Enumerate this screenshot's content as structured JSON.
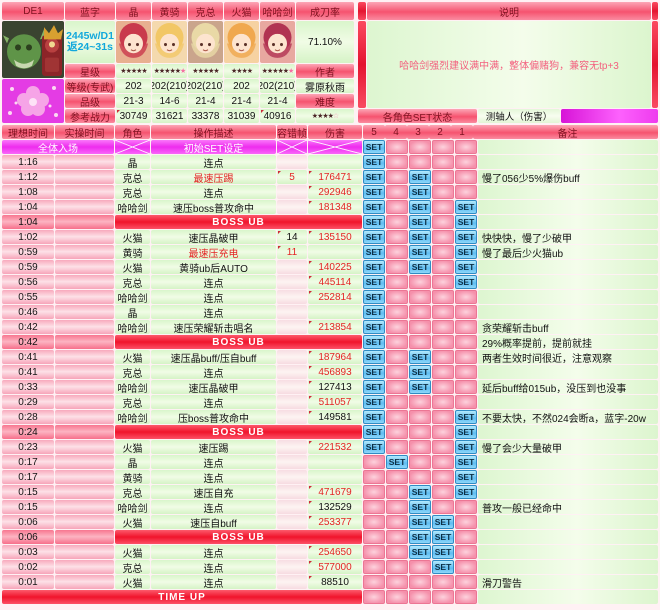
{
  "top": {
    "boss_tag": "DE1",
    "blue_tag": "蓝字",
    "boss_info_line1": "2445w/D1",
    "boss_info_line2": "返24~31s",
    "rate_label": "成刀率",
    "rate_value": "71.10%",
    "desc_label": "说明",
    "description": "哈哈剑强烈建议满中满，整体偏赌狗，兼容无tp+3",
    "row_labels": [
      "星级",
      "等级(专武)",
      "品级",
      "参考战力"
    ],
    "author_label": "作者",
    "author": "雾原秋雨",
    "difficulty_label": "难度",
    "difficulty_stars": "★★★★",
    "difficulty_star_light": "☆",
    "set_status_label": "各角色SET状态",
    "axis_tester_label": "测轴人（伤害）",
    "characters": [
      {
        "name": "晶",
        "stars": "★★★★★",
        "pink_star": "",
        "level": "202",
        "rank": "21-3",
        "power": "30749",
        "hair": "#c93a4c",
        "bg": "#e8b090"
      },
      {
        "name": "黄骑",
        "stars": "★★★★★",
        "pink_star": "★",
        "level": "202(210)",
        "rank": "14-6",
        "power": "31621",
        "hair": "#f2c766",
        "bg": "#f4d9ae"
      },
      {
        "name": "克总",
        "stars": "★★★★★",
        "pink_star": "",
        "level": "202(210)",
        "rank": "21-4",
        "power": "33378",
        "hair": "#e9d9a6",
        "bg": "#caa58c"
      },
      {
        "name": "火猫",
        "stars": "★★★★",
        "pink_star": "",
        "level": "202",
        "rank": "21-4",
        "power": "31039",
        "hair": "#f0a84e",
        "bg": "#f6d2a2"
      },
      {
        "name": "哈哈剑",
        "stars": "★★★★★",
        "pink_star": "★",
        "level": "202(210)",
        "rank": "21-4",
        "power": "40916",
        "hair": "#b13352",
        "bg": "#e8a8a0"
      }
    ]
  },
  "table": {
    "headers": {
      "ideal_time": "理想时间",
      "actual_time": "实操时间",
      "role": "角色",
      "action": "操作描述",
      "tolerance": "容错帧",
      "damage": "伤害",
      "note": "备注"
    },
    "set_columns": [
      "5",
      "4",
      "3",
      "2",
      "1"
    ],
    "boss_row_label": "BOSS UB",
    "timeup_row_label": "TIME UP",
    "rows": [
      {
        "type": "start",
        "time": "全体入场",
        "desc": "初始SET设定",
        "set": [
          5
        ],
        "note": ""
      },
      {
        "type": "entry",
        "time": "1:16",
        "char": "晶",
        "desc": "连点",
        "tol": "",
        "dmg": "",
        "set": [
          5
        ],
        "note": ""
      },
      {
        "type": "entry",
        "time": "1:12",
        "char": "克总",
        "desc": "最速压踢",
        "desc_red": true,
        "tol": "5",
        "tol_red": true,
        "dmg": "176471",
        "dmg_red": true,
        "set": [
          5,
          3
        ],
        "note": "慢了056少5%爆伤buff"
      },
      {
        "type": "entry",
        "time": "1:08",
        "char": "克总",
        "desc": "连点",
        "tol": "",
        "dmg": "292946",
        "dmg_red": true,
        "set": [
          5,
          3
        ],
        "note": ""
      },
      {
        "type": "entry",
        "time": "1:04",
        "char": "哈哈剑",
        "desc": "速压boss普攻命中",
        "tol": "",
        "dmg": "181348",
        "dmg_red": true,
        "set": [
          5,
          3,
          1
        ],
        "note": ""
      },
      {
        "type": "boss",
        "time": "1:04",
        "set": [
          5,
          3,
          1
        ],
        "note": ""
      },
      {
        "type": "entry",
        "time": "1:02",
        "char": "火猫",
        "desc": "速压晶破甲",
        "tol": "14",
        "dmg": "135150",
        "dmg_red": true,
        "set": [
          5,
          3,
          1
        ],
        "note": "快快快，慢了少破甲"
      },
      {
        "type": "entry",
        "time": "0:59",
        "char": "黄骑",
        "desc": "最速压充电",
        "desc_red": true,
        "tol": "11",
        "tol_red": true,
        "dmg": "",
        "set": [
          5,
          3,
          1
        ],
        "note": "慢了最后少火猫ub"
      },
      {
        "type": "entry",
        "time": "0:59",
        "char": "火猫",
        "desc": "黄骑ub后AUTO",
        "tol": "",
        "dmg": "140225",
        "dmg_red": true,
        "set": [
          5,
          3,
          1
        ],
        "note": ""
      },
      {
        "type": "entry",
        "time": "0:56",
        "char": "克总",
        "desc": "连点",
        "tol": "",
        "dmg": "445114",
        "dmg_red": true,
        "set": [
          5,
          1
        ],
        "note": ""
      },
      {
        "type": "entry",
        "time": "0:55",
        "char": "哈哈剑",
        "desc": "连点",
        "tol": "",
        "dmg": "252814",
        "dmg_red": true,
        "set": [
          5
        ],
        "note": ""
      },
      {
        "type": "entry",
        "time": "0:46",
        "char": "晶",
        "desc": "连点",
        "tol": "",
        "dmg": "",
        "set": [
          5
        ],
        "note": ""
      },
      {
        "type": "entry",
        "time": "0:42",
        "char": "哈哈剑",
        "desc": "速压荣耀斩击唱名",
        "tol": "",
        "dmg": "213854",
        "dmg_red": true,
        "set": [
          5
        ],
        "note": "贪荣耀斩击buff"
      },
      {
        "type": "boss",
        "time": "0:42",
        "set": [
          5
        ],
        "note": "29%概率提前，提前就挂"
      },
      {
        "type": "entry",
        "time": "0:41",
        "char": "火猫",
        "desc": "速压晶buff/压自buff",
        "tol": "",
        "dmg": "187964",
        "dmg_red": true,
        "set": [
          5,
          3
        ],
        "note": "两者生效时间很近，注意观察"
      },
      {
        "type": "entry",
        "time": "0:41",
        "char": "克总",
        "desc": "连点",
        "tol": "",
        "dmg": "456893",
        "dmg_red": true,
        "set": [
          5,
          3
        ],
        "note": ""
      },
      {
        "type": "entry",
        "time": "0:33",
        "char": "哈哈剑",
        "desc": "速压晶破甲",
        "tol": "",
        "dmg": "127413",
        "set": [
          5,
          3
        ],
        "note": "延后buff给015ub，没压到也没事"
      },
      {
        "type": "entry",
        "time": "0:29",
        "char": "克总",
        "desc": "连点",
        "tol": "",
        "dmg": "511057",
        "dmg_red": true,
        "set": [
          5
        ],
        "note": ""
      },
      {
        "type": "entry",
        "time": "0:28",
        "char": "哈哈剑",
        "desc": "压boss普攻命中",
        "tol": "",
        "dmg": "149581",
        "set": [
          5,
          1
        ],
        "note": "不要太快，不然024会断a，蓝字-20w"
      },
      {
        "type": "boss",
        "time": "0:24",
        "set": [
          5,
          1
        ],
        "note": ""
      },
      {
        "type": "entry",
        "time": "0:23",
        "char": "火猫",
        "desc": "速压踢",
        "tol": "",
        "dmg": "221532",
        "dmg_red": true,
        "set": [
          5,
          1
        ],
        "note": "慢了会少大量破甲"
      },
      {
        "type": "entry",
        "time": "0:17",
        "char": "晶",
        "desc": "连点",
        "tol": "",
        "dmg": "",
        "set": [
          4,
          1
        ],
        "note": ""
      },
      {
        "type": "entry",
        "time": "0:17",
        "char": "黄骑",
        "desc": "连点",
        "tol": "",
        "dmg": "",
        "set": [
          1
        ],
        "note": ""
      },
      {
        "type": "entry",
        "time": "0:15",
        "char": "克总",
        "desc": "速压自充",
        "tol": "",
        "dmg": "471679",
        "dmg_red": true,
        "set": [
          3,
          1
        ],
        "note": ""
      },
      {
        "type": "entry",
        "time": "0:15",
        "char": "哈哈剑",
        "desc": "连点",
        "tol": "",
        "dmg": "132529",
        "set": [
          3
        ],
        "note": "普攻一般已经命中"
      },
      {
        "type": "entry",
        "time": "0:06",
        "char": "火猫",
        "desc": "速压自buff",
        "tol": "",
        "dmg": "253377",
        "dmg_red": true,
        "set": [
          3,
          2
        ],
        "note": ""
      },
      {
        "type": "boss",
        "time": "0:06",
        "set": [
          3,
          2
        ],
        "note": ""
      },
      {
        "type": "entry",
        "time": "0:03",
        "char": "火猫",
        "desc": "连点",
        "tol": "",
        "dmg": "254650",
        "dmg_red": true,
        "set": [
          3,
          2
        ],
        "note": ""
      },
      {
        "type": "entry",
        "time": "0:02",
        "char": "克总",
        "desc": "连点",
        "tol": "",
        "dmg": "577000",
        "dmg_red": true,
        "set": [
          2
        ],
        "note": ""
      },
      {
        "type": "entry",
        "time": "0:01",
        "char": "火猫",
        "desc": "连点",
        "tol": "",
        "dmg": "88510",
        "set": [],
        "note": "滑刀警告"
      },
      {
        "type": "timeup",
        "set": [],
        "note": ""
      }
    ]
  },
  "colors": {
    "accent_red": "#f0142c",
    "magenta": "#ee2bee",
    "set_blue": "#5fbdf2",
    "value_red": "#e42424",
    "cyan_info": "#12a8dc"
  }
}
